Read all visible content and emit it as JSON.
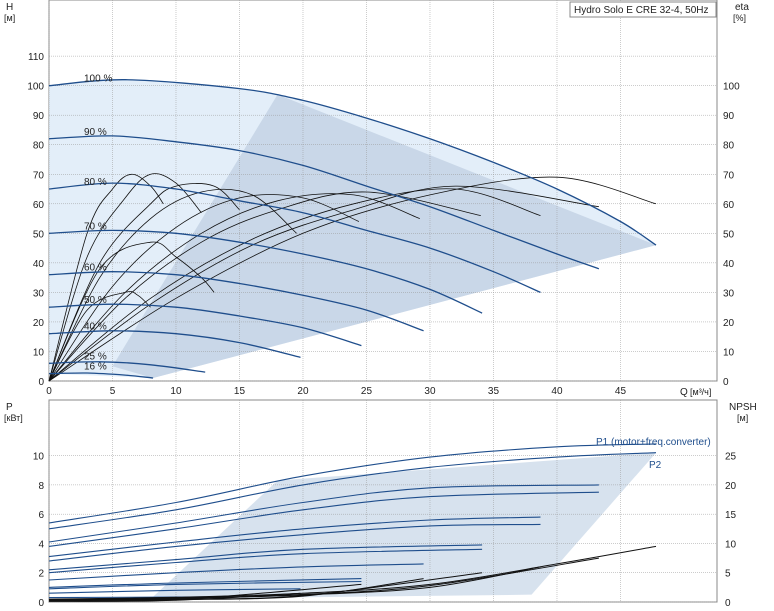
{
  "title": "Hydro Solo E CRE 32-4, 50Hz",
  "chart_data": [
    {
      "id": "head",
      "type": "line",
      "x_label": "Q",
      "x_unit": "[м³/ч]",
      "x_range": [
        0,
        50
      ],
      "x_ticks": [
        "0",
        "5",
        "10",
        "15",
        "20",
        "25",
        "30",
        "35",
        "40",
        "45"
      ],
      "y_left_label": "H",
      "y_left_unit": "[м]",
      "y_left_range": [
        0,
        120
      ],
      "y_left_ticks": [
        "0",
        "10",
        "20",
        "30",
        "40",
        "50",
        "60",
        "70",
        "80",
        "90",
        "100",
        "110"
      ],
      "y_right_label": "eta",
      "y_right_unit": "[%]",
      "y_right_range": [
        0,
        120
      ],
      "y_right_ticks": [
        "0",
        "10",
        "20",
        "30",
        "40",
        "50",
        "60",
        "70",
        "80",
        "90",
        "100"
      ],
      "grid": true,
      "series": [
        {
          "name": "100 %",
          "x": [
            0,
            6,
            15,
            20,
            25,
            30,
            35,
            40,
            45,
            47.8
          ],
          "y": [
            100,
            102,
            99,
            95,
            89,
            82,
            74,
            65,
            54,
            46
          ]
        },
        {
          "name": "90 %",
          "x": [
            0,
            5,
            10,
            15,
            20,
            25,
            30,
            35,
            40,
            43.3
          ],
          "y": [
            82,
            83,
            81,
            78,
            73,
            66,
            59,
            51,
            43,
            38
          ]
        },
        {
          "name": "80 %",
          "x": [
            0,
            5,
            10,
            15,
            20,
            25,
            30,
            35,
            38.7
          ],
          "y": [
            65,
            67,
            65,
            61,
            57,
            51,
            45,
            37,
            30
          ]
        },
        {
          "name": "70 %",
          "x": [
            0,
            5,
            10,
            15,
            20,
            25,
            30,
            34.1
          ],
          "y": [
            50,
            51,
            50,
            47,
            43,
            38,
            31,
            23
          ]
        },
        {
          "name": "60 %",
          "x": [
            0,
            5,
            10,
            15,
            20,
            25,
            29.5
          ],
          "y": [
            36,
            37,
            36,
            33,
            29,
            24,
            17
          ]
        },
        {
          "name": "50 %",
          "x": [
            0,
            5,
            10,
            15,
            20,
            24.6
          ],
          "y": [
            25,
            26,
            25,
            22,
            18,
            12
          ]
        },
        {
          "name": "40 %",
          "x": [
            0,
            5,
            10,
            15,
            19.8
          ],
          "y": [
            16,
            17,
            16,
            13,
            8
          ]
        },
        {
          "name": "25 %",
          "x": [
            0,
            4,
            8,
            12.3
          ],
          "y": [
            6,
            6.5,
            5.5,
            3
          ]
        },
        {
          "name": "16 %",
          "x": [
            0,
            3,
            6,
            8.2
          ],
          "y": [
            2.5,
            2.7,
            2,
            1
          ]
        }
      ],
      "efficiency_curves": [
        {
          "x": [
            0,
            3,
            5,
            6.5,
            8,
            9
          ],
          "y": [
            0,
            50,
            65,
            70,
            66,
            60
          ]
        },
        {
          "x": [
            0,
            3,
            6,
            8,
            10,
            12
          ],
          "y": [
            0,
            42,
            62,
            70,
            67,
            57
          ]
        },
        {
          "x": [
            0,
            4,
            8,
            10,
            13,
            15
          ],
          "y": [
            0,
            40,
            60,
            66,
            66,
            58
          ]
        },
        {
          "x": [
            0,
            4,
            8,
            12,
            16,
            19.5
          ],
          "y": [
            0,
            35,
            55,
            64,
            63,
            50
          ]
        },
        {
          "x": [
            0,
            5,
            10,
            15,
            20,
            24.4
          ],
          "y": [
            0,
            32,
            52,
            62,
            62,
            54
          ]
        },
        {
          "x": [
            0,
            6,
            12,
            18,
            24,
            29.2
          ],
          "y": [
            0,
            30,
            50,
            61,
            63,
            55
          ]
        },
        {
          "x": [
            0,
            6,
            12,
            18,
            25,
            34
          ],
          "y": [
            0,
            28,
            47,
            58,
            64,
            56
          ]
        },
        {
          "x": [
            0,
            8,
            16,
            24,
            32,
            38.7
          ],
          "y": [
            0,
            28,
            48,
            60,
            65,
            56
          ]
        },
        {
          "x": [
            0,
            8,
            16,
            24,
            32,
            43.3
          ],
          "y": [
            0,
            26,
            46,
            58,
            66,
            59
          ]
        },
        {
          "x": [
            0,
            10,
            20,
            30,
            40,
            47.8
          ],
          "y": [
            0,
            28,
            50,
            63,
            69,
            60
          ]
        },
        {
          "x": [
            0,
            4,
            8,
            10,
            12,
            13
          ],
          "y": [
            0,
            38,
            47,
            42,
            35,
            30
          ]
        },
        {
          "x": [
            0,
            3,
            6,
            7,
            8
          ],
          "y": [
            0,
            24,
            30,
            29,
            25
          ]
        }
      ]
    },
    {
      "id": "power",
      "type": "line",
      "x_range": [
        0,
        50
      ],
      "y_left_label": "P",
      "y_left_unit": "[кВт]",
      "y_left_range": [
        0,
        12
      ],
      "y_left_ticks": [
        "0",
        "2",
        "4",
        "6",
        "8",
        "10"
      ],
      "y_right_label": "NPSH",
      "y_right_unit": "[м]",
      "y_right_range": [
        0,
        30
      ],
      "y_right_ticks": [
        "0",
        "5",
        "10",
        "15",
        "20",
        "25"
      ],
      "grid": true,
      "legend": [
        "P1 (motor+freq.converter)",
        "P2"
      ],
      "series": [
        {
          "name": "P1 100 %",
          "x": [
            0,
            10,
            20,
            30,
            40,
            47.8
          ],
          "y": [
            5.4,
            6.8,
            8.6,
            9.9,
            10.6,
            10.8
          ]
        },
        {
          "name": "P2 100 %",
          "x": [
            0,
            10,
            20,
            30,
            40,
            47.8
          ],
          "y": [
            5.0,
            6.3,
            8.0,
            9.2,
            9.9,
            10.2
          ]
        },
        {
          "name": "P1 90 %",
          "x": [
            0,
            10,
            20,
            30,
            43.3
          ],
          "y": [
            4.1,
            5.4,
            6.8,
            7.8,
            8.0
          ]
        },
        {
          "name": "P2 90 %",
          "x": [
            0,
            10,
            20,
            30,
            43.3
          ],
          "y": [
            3.8,
            5.0,
            6.3,
            7.2,
            7.5
          ]
        },
        {
          "name": "P1 80 %",
          "x": [
            0,
            10,
            20,
            30,
            38.7
          ],
          "y": [
            3.1,
            4.1,
            5.0,
            5.6,
            5.8
          ]
        },
        {
          "name": "P2 80 %",
          "x": [
            0,
            10,
            20,
            30,
            38.7
          ],
          "y": [
            2.8,
            3.8,
            4.6,
            5.2,
            5.3
          ]
        },
        {
          "name": "P1 70 %",
          "x": [
            0,
            10,
            20,
            34.1
          ],
          "y": [
            2.2,
            2.9,
            3.6,
            3.9
          ]
        },
        {
          "name": "P2 70 %",
          "x": [
            0,
            10,
            20,
            34.1
          ],
          "y": [
            2.0,
            2.7,
            3.3,
            3.6
          ]
        },
        {
          "name": "P1 60 %",
          "x": [
            0,
            10,
            20,
            29.5
          ],
          "y": [
            1.5,
            2.0,
            2.4,
            2.6
          ]
        },
        {
          "name": "P1 50 %",
          "x": [
            0,
            10,
            24.6
          ],
          "y": [
            1.0,
            1.3,
            1.6
          ]
        },
        {
          "name": "P2 50 %",
          "x": [
            0,
            10,
            24.6
          ],
          "y": [
            0.9,
            1.2,
            1.4
          ]
        },
        {
          "name": "P1 40 %",
          "x": [
            0,
            10,
            19.8
          ],
          "y": [
            0.6,
            0.8,
            0.9
          ]
        },
        {
          "name": "P1 25 %",
          "x": [
            0,
            12.3
          ],
          "y": [
            0.3,
            0.35
          ]
        },
        {
          "name": "P1 16 %",
          "x": [
            0,
            8.2
          ],
          "y": [
            0.15,
            0.2
          ]
        }
      ],
      "npsh_curves": [
        {
          "x": [
            0,
            10,
            20,
            30,
            40,
            47.8
          ],
          "y": [
            0.5,
            0.8,
            1.5,
            3,
            6.5,
            9.5
          ]
        },
        {
          "x": [
            0,
            10,
            20,
            30,
            43.3
          ],
          "y": [
            0.4,
            0.7,
            1.3,
            2.8,
            7.5
          ]
        },
        {
          "x": [
            0,
            10,
            20,
            30,
            38.7
          ],
          "y": [
            0.3,
            0.6,
            1.2,
            2.5,
            6
          ]
        },
        {
          "x": [
            0,
            10,
            20,
            34.1
          ],
          "y": [
            0.3,
            0.5,
            1.1,
            5
          ]
        },
        {
          "x": [
            0,
            10,
            20,
            29.5
          ],
          "y": [
            0.2,
            0.4,
            1,
            4
          ]
        },
        {
          "x": [
            0,
            10,
            24.6
          ],
          "y": [
            0.2,
            0.4,
            3
          ]
        },
        {
          "x": [
            0,
            10,
            19.8
          ],
          "y": [
            0.1,
            0.3,
            1.5
          ]
        }
      ]
    }
  ]
}
